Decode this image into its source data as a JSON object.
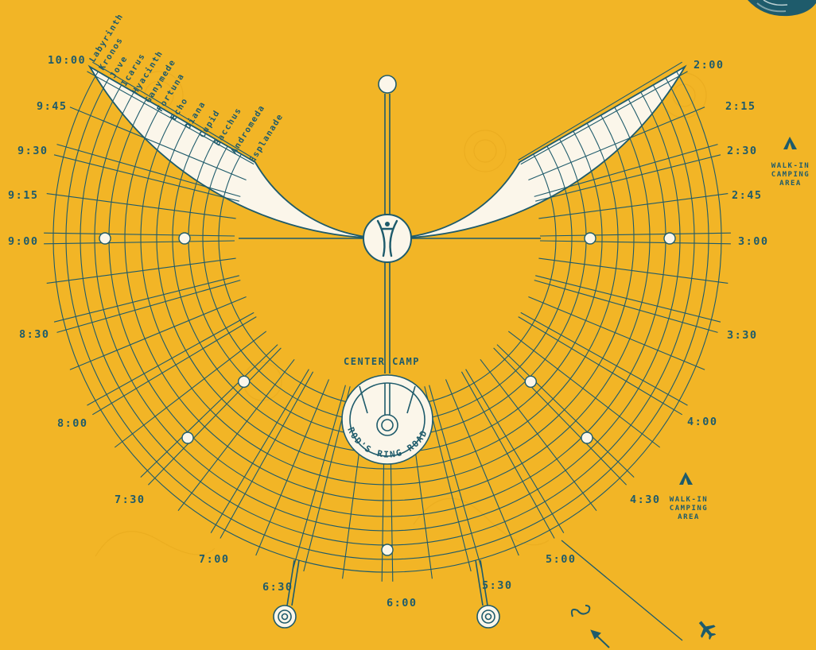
{
  "colors": {
    "background": "#F2B526",
    "ink": "#1E5B6B",
    "block_fill": "#FBF6EA"
  },
  "streets": [
    "Esplanade",
    "Andromeda",
    "Bacchus",
    "Cupid",
    "Diana",
    "Echo",
    "Fortuna",
    "Ganymede",
    "Hyacinth",
    "Icarus",
    "Jove",
    "Kronos",
    "Labyrinth"
  ],
  "times": {
    "t1000": "10:00",
    "t0945": "9:45",
    "t0930": "9:30",
    "t0915": "9:15",
    "t0900": "9:00",
    "t0830": "8:30",
    "t0800": "8:00",
    "t0730": "7:30",
    "t0700": "7:00",
    "t0630": "6:30",
    "t0600": "6:00",
    "t0530": "5:30",
    "t0500": "5:00",
    "t0430": "4:30",
    "t0400": "4:00",
    "t0330": "3:30",
    "t0300": "3:00",
    "t0245": "2:45",
    "t0230": "2:30",
    "t0215": "2:15",
    "t0200": "2:00"
  },
  "center_camp": "CENTER CAMP",
  "ring_road": "ROD'S RING ROAD",
  "walk_in": {
    "line1": "WALK-IN",
    "line2": "CAMPING",
    "line3": "AREA"
  },
  "icons": {
    "man": "man-icon",
    "tent": "tent-icon",
    "airplane": "airplane-icon",
    "north": "north-arrow-icon",
    "temple": "temple-icon",
    "gate": "gate-icon"
  }
}
